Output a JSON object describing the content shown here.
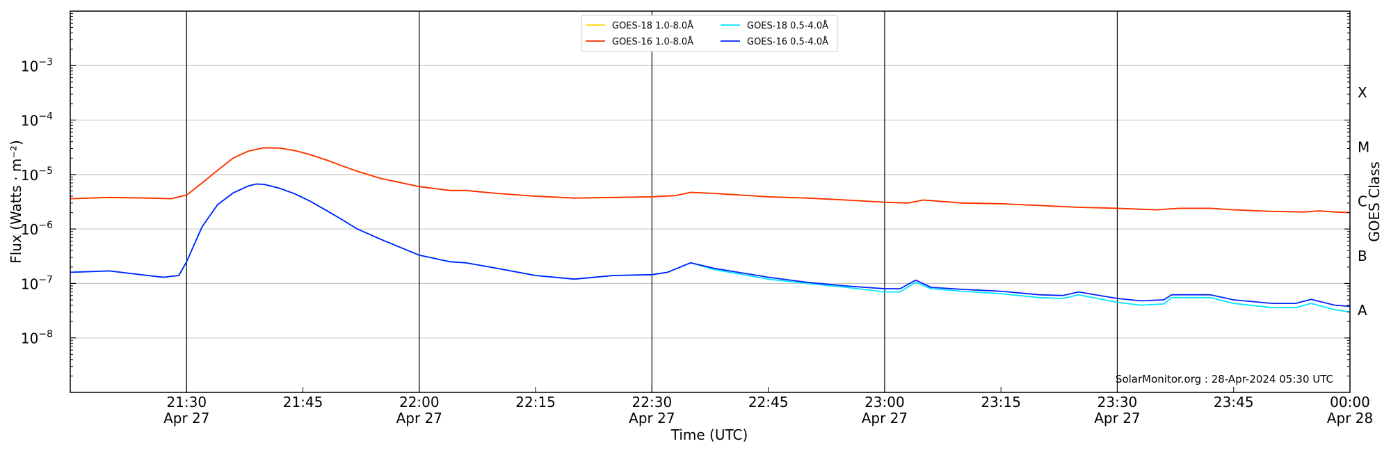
{
  "chart_data": {
    "type": "line",
    "title": "",
    "xlabel": "Time (UTC)",
    "ylabel": "Flux (Watts · m⁻²)",
    "y2label": "GOES Class",
    "y_scale": "log",
    "ylim": [
      1e-09,
      0.01
    ],
    "xlim": [
      "2024-04-27 21:15",
      "2024-04-28 00:00"
    ],
    "grid": "horizontal",
    "legend_position": "top-center",
    "watermark": "SolarMonitor.org : 28-Apr-2024 05:30 UTC",
    "y_ticks": [
      {
        "value": 1e-08,
        "base": "10",
        "exp": "−8"
      },
      {
        "value": 1e-07,
        "base": "10",
        "exp": "−7"
      },
      {
        "value": 1e-06,
        "base": "10",
        "exp": "−6"
      },
      {
        "value": 1e-05,
        "base": "10",
        "exp": "−5"
      },
      {
        "value": 0.0001,
        "base": "10",
        "exp": "−4"
      },
      {
        "value": 0.001,
        "base": "10",
        "exp": "−3"
      }
    ],
    "x_ticks": [
      {
        "time": "2024-04-27 21:30",
        "label": "21:30",
        "date": "Apr 27",
        "vline": true
      },
      {
        "time": "2024-04-27 21:45",
        "label": "21:45",
        "date": "",
        "vline": false
      },
      {
        "time": "2024-04-27 22:00",
        "label": "22:00",
        "date": "Apr 27",
        "vline": true
      },
      {
        "time": "2024-04-27 22:15",
        "label": "22:15",
        "date": "",
        "vline": false
      },
      {
        "time": "2024-04-27 22:30",
        "label": "22:30",
        "date": "Apr 27",
        "vline": true
      },
      {
        "time": "2024-04-27 22:45",
        "label": "22:45",
        "date": "",
        "vline": false
      },
      {
        "time": "2024-04-27 23:00",
        "label": "23:00",
        "date": "Apr 27",
        "vline": true
      },
      {
        "time": "2024-04-27 23:15",
        "label": "23:15",
        "date": "",
        "vline": false
      },
      {
        "time": "2024-04-27 23:30",
        "label": "23:30",
        "date": "Apr 27",
        "vline": true
      },
      {
        "time": "2024-04-27 23:45",
        "label": "23:45",
        "date": "",
        "vline": false
      },
      {
        "time": "2024-04-28 00:00",
        "label": "00:00",
        "date": "Apr 28",
        "vline": false
      }
    ],
    "class_labels": [
      {
        "label": "A",
        "value": 3.2e-08
      },
      {
        "label": "B",
        "value": 3.2e-07
      },
      {
        "label": "C",
        "value": 3.2e-06
      },
      {
        "label": "M",
        "value": 3.2e-05
      },
      {
        "label": "X",
        "value": 0.00032
      }
    ],
    "series": [
      {
        "name": "GOES-18 1.0-8.0Å",
        "color": "#ffd700",
        "points": [
          [
            "2024-04-27 21:15",
            3.6e-06
          ],
          [
            "2024-04-27 21:20",
            3.8e-06
          ],
          [
            "2024-04-27 21:25",
            3.7e-06
          ],
          [
            "2024-04-27 21:28",
            3.6e-06
          ],
          [
            "2024-04-27 21:30",
            4.2e-06
          ],
          [
            "2024-04-27 21:32",
            7e-06
          ],
          [
            "2024-04-27 21:34",
            1.2e-05
          ],
          [
            "2024-04-27 21:36",
            2e-05
          ],
          [
            "2024-04-27 21:38",
            2.7e-05
          ],
          [
            "2024-04-27 21:40",
            3.1e-05
          ],
          [
            "2024-04-27 21:42",
            3.05e-05
          ],
          [
            "2024-04-27 21:44",
            2.75e-05
          ],
          [
            "2024-04-27 21:46",
            2.3e-05
          ],
          [
            "2024-04-27 21:48",
            1.85e-05
          ],
          [
            "2024-04-27 21:50",
            1.45e-05
          ],
          [
            "2024-04-27 21:52",
            1.15e-05
          ],
          [
            "2024-04-27 21:55",
            8.5e-06
          ],
          [
            "2024-04-27 22:00",
            6e-06
          ],
          [
            "2024-04-27 22:04",
            5.1e-06
          ],
          [
            "2024-04-27 22:06",
            5.1e-06
          ],
          [
            "2024-04-27 22:10",
            4.5e-06
          ],
          [
            "2024-04-27 22:15",
            4e-06
          ],
          [
            "2024-04-27 22:20",
            3.7e-06
          ],
          [
            "2024-04-27 22:25",
            3.8e-06
          ],
          [
            "2024-04-27 22:30",
            3.9e-06
          ],
          [
            "2024-04-27 22:33",
            4.1e-06
          ],
          [
            "2024-04-27 22:35",
            4.7e-06
          ],
          [
            "2024-04-27 22:38",
            4.5e-06
          ],
          [
            "2024-04-27 22:45",
            3.9e-06
          ],
          [
            "2024-04-27 22:50",
            3.7e-06
          ],
          [
            "2024-04-27 22:55",
            3.4e-06
          ],
          [
            "2024-04-27 23:00",
            3.1e-06
          ],
          [
            "2024-04-27 23:03",
            3e-06
          ],
          [
            "2024-04-27 23:05",
            3.4e-06
          ],
          [
            "2024-04-27 23:10",
            3e-06
          ],
          [
            "2024-04-27 23:15",
            2.9e-06
          ],
          [
            "2024-04-27 23:20",
            2.7e-06
          ],
          [
            "2024-04-27 23:25",
            2.5e-06
          ],
          [
            "2024-04-27 23:30",
            2.4e-06
          ],
          [
            "2024-04-27 23:35",
            2.25e-06
          ],
          [
            "2024-04-27 23:38",
            2.4e-06
          ],
          [
            "2024-04-27 23:42",
            2.4e-06
          ],
          [
            "2024-04-27 23:45",
            2.25e-06
          ],
          [
            "2024-04-27 23:50",
            2.1e-06
          ],
          [
            "2024-04-27 23:54",
            2.05e-06
          ],
          [
            "2024-04-27 23:56",
            2.15e-06
          ],
          [
            "2024-04-27 23:58",
            2.05e-06
          ],
          [
            "2024-04-28 00:00",
            2e-06
          ]
        ]
      },
      {
        "name": "GOES-16 1.0-8.0Å",
        "color": "#ff2a00",
        "points": [
          [
            "2024-04-27 21:15",
            3.6e-06
          ],
          [
            "2024-04-27 21:20",
            3.8e-06
          ],
          [
            "2024-04-27 21:25",
            3.7e-06
          ],
          [
            "2024-04-27 21:28",
            3.6e-06
          ],
          [
            "2024-04-27 21:30",
            4.2e-06
          ],
          [
            "2024-04-27 21:32",
            7e-06
          ],
          [
            "2024-04-27 21:34",
            1.2e-05
          ],
          [
            "2024-04-27 21:36",
            2e-05
          ],
          [
            "2024-04-27 21:38",
            2.7e-05
          ],
          [
            "2024-04-27 21:40",
            3.1e-05
          ],
          [
            "2024-04-27 21:42",
            3.05e-05
          ],
          [
            "2024-04-27 21:44",
            2.75e-05
          ],
          [
            "2024-04-27 21:46",
            2.3e-05
          ],
          [
            "2024-04-27 21:48",
            1.85e-05
          ],
          [
            "2024-04-27 21:50",
            1.45e-05
          ],
          [
            "2024-04-27 21:52",
            1.15e-05
          ],
          [
            "2024-04-27 21:55",
            8.5e-06
          ],
          [
            "2024-04-27 22:00",
            6e-06
          ],
          [
            "2024-04-27 22:04",
            5.1e-06
          ],
          [
            "2024-04-27 22:06",
            5.1e-06
          ],
          [
            "2024-04-27 22:10",
            4.5e-06
          ],
          [
            "2024-04-27 22:15",
            4e-06
          ],
          [
            "2024-04-27 22:20",
            3.7e-06
          ],
          [
            "2024-04-27 22:25",
            3.8e-06
          ],
          [
            "2024-04-27 22:30",
            3.9e-06
          ],
          [
            "2024-04-27 22:33",
            4.1e-06
          ],
          [
            "2024-04-27 22:35",
            4.7e-06
          ],
          [
            "2024-04-27 22:38",
            4.5e-06
          ],
          [
            "2024-04-27 22:45",
            3.9e-06
          ],
          [
            "2024-04-27 22:50",
            3.7e-06
          ],
          [
            "2024-04-27 22:55",
            3.4e-06
          ],
          [
            "2024-04-27 23:00",
            3.1e-06
          ],
          [
            "2024-04-27 23:03",
            3e-06
          ],
          [
            "2024-04-27 23:05",
            3.4e-06
          ],
          [
            "2024-04-27 23:10",
            3e-06
          ],
          [
            "2024-04-27 23:15",
            2.9e-06
          ],
          [
            "2024-04-27 23:20",
            2.7e-06
          ],
          [
            "2024-04-27 23:25",
            2.5e-06
          ],
          [
            "2024-04-27 23:30",
            2.4e-06
          ],
          [
            "2024-04-27 23:35",
            2.25e-06
          ],
          [
            "2024-04-27 23:38",
            2.4e-06
          ],
          [
            "2024-04-27 23:42",
            2.4e-06
          ],
          [
            "2024-04-27 23:45",
            2.25e-06
          ],
          [
            "2024-04-27 23:50",
            2.1e-06
          ],
          [
            "2024-04-27 23:54",
            2.05e-06
          ],
          [
            "2024-04-27 23:56",
            2.15e-06
          ],
          [
            "2024-04-27 23:58",
            2.05e-06
          ],
          [
            "2024-04-28 00:00",
            2e-06
          ]
        ]
      },
      {
        "name": "GOES-18 0.5-4.0Å",
        "color": "#00e5ff",
        "points": [
          [
            "2024-04-27 21:15",
            1.6e-07
          ],
          [
            "2024-04-27 21:20",
            1.7e-07
          ],
          [
            "2024-04-27 21:25",
            1.4e-07
          ],
          [
            "2024-04-27 21:27",
            1.3e-07
          ],
          [
            "2024-04-27 21:29",
            1.4e-07
          ],
          [
            "2024-04-27 21:30",
            2.5e-07
          ],
          [
            "2024-04-27 21:32",
            1.1e-06
          ],
          [
            "2024-04-27 21:34",
            2.8e-06
          ],
          [
            "2024-04-27 21:36",
            4.6e-06
          ],
          [
            "2024-04-27 21:38",
            6.2e-06
          ],
          [
            "2024-04-27 21:39",
            6.7e-06
          ],
          [
            "2024-04-27 21:40",
            6.6e-06
          ],
          [
            "2024-04-27 21:42",
            5.6e-06
          ],
          [
            "2024-04-27 21:44",
            4.4e-06
          ],
          [
            "2024-04-27 21:46",
            3.2e-06
          ],
          [
            "2024-04-27 21:48",
            2.2e-06
          ],
          [
            "2024-04-27 21:50",
            1.5e-06
          ],
          [
            "2024-04-27 21:52",
            1e-06
          ],
          [
            "2024-04-27 21:55",
            6.5e-07
          ],
          [
            "2024-04-27 22:00",
            3.3e-07
          ],
          [
            "2024-04-27 22:04",
            2.5e-07
          ],
          [
            "2024-04-27 22:06",
            2.4e-07
          ],
          [
            "2024-04-27 22:10",
            1.9e-07
          ],
          [
            "2024-04-27 22:15",
            1.4e-07
          ],
          [
            "2024-04-27 22:20",
            1.2e-07
          ],
          [
            "2024-04-27 22:25",
            1.4e-07
          ],
          [
            "2024-04-27 22:30",
            1.45e-07
          ],
          [
            "2024-04-27 22:32",
            1.6e-07
          ],
          [
            "2024-04-27 22:35",
            2.4e-07
          ],
          [
            "2024-04-27 22:38",
            1.8e-07
          ],
          [
            "2024-04-27 22:45",
            1.2e-07
          ],
          [
            "2024-04-27 22:50",
            1e-07
          ],
          [
            "2024-04-27 22:55",
            8.5e-08
          ],
          [
            "2024-04-27 23:00",
            7e-08
          ],
          [
            "2024-04-27 23:02",
            7e-08
          ],
          [
            "2024-04-27 23:04",
            1.05e-07
          ],
          [
            "2024-04-27 23:06",
            8e-08
          ],
          [
            "2024-04-27 23:10",
            7.2e-08
          ],
          [
            "2024-04-27 23:15",
            6.5e-08
          ],
          [
            "2024-04-27 23:20",
            5.5e-08
          ],
          [
            "2024-04-27 23:23",
            5.3e-08
          ],
          [
            "2024-04-27 23:25",
            6.2e-08
          ],
          [
            "2024-04-27 23:30",
            4.5e-08
          ],
          [
            "2024-04-27 23:33",
            4e-08
          ],
          [
            "2024-04-27 23:36",
            4.2e-08
          ],
          [
            "2024-04-27 23:37",
            5.5e-08
          ],
          [
            "2024-04-27 23:42",
            5.5e-08
          ],
          [
            "2024-04-27 23:45",
            4.3e-08
          ],
          [
            "2024-04-27 23:50",
            3.6e-08
          ],
          [
            "2024-04-27 23:53",
            3.6e-08
          ],
          [
            "2024-04-27 23:55",
            4.3e-08
          ],
          [
            "2024-04-27 23:58",
            3.3e-08
          ],
          [
            "2024-04-28 00:00",
            3e-08
          ]
        ]
      },
      {
        "name": "GOES-16 0.5-4.0Å",
        "color": "#0020ff",
        "points": [
          [
            "2024-04-27 21:15",
            1.6e-07
          ],
          [
            "2024-04-27 21:20",
            1.7e-07
          ],
          [
            "2024-04-27 21:25",
            1.4e-07
          ],
          [
            "2024-04-27 21:27",
            1.3e-07
          ],
          [
            "2024-04-27 21:29",
            1.4e-07
          ],
          [
            "2024-04-27 21:30",
            2.5e-07
          ],
          [
            "2024-04-27 21:32",
            1.1e-06
          ],
          [
            "2024-04-27 21:34",
            2.8e-06
          ],
          [
            "2024-04-27 21:36",
            4.6e-06
          ],
          [
            "2024-04-27 21:38",
            6.2e-06
          ],
          [
            "2024-04-27 21:39",
            6.7e-06
          ],
          [
            "2024-04-27 21:40",
            6.6e-06
          ],
          [
            "2024-04-27 21:42",
            5.6e-06
          ],
          [
            "2024-04-27 21:44",
            4.4e-06
          ],
          [
            "2024-04-27 21:46",
            3.2e-06
          ],
          [
            "2024-04-27 21:48",
            2.2e-06
          ],
          [
            "2024-04-27 21:50",
            1.5e-06
          ],
          [
            "2024-04-27 21:52",
            1e-06
          ],
          [
            "2024-04-27 21:55",
            6.5e-07
          ],
          [
            "2024-04-27 22:00",
            3.3e-07
          ],
          [
            "2024-04-27 22:04",
            2.5e-07
          ],
          [
            "2024-04-27 22:06",
            2.4e-07
          ],
          [
            "2024-04-27 22:10",
            1.9e-07
          ],
          [
            "2024-04-27 22:15",
            1.4e-07
          ],
          [
            "2024-04-27 22:20",
            1.2e-07
          ],
          [
            "2024-04-27 22:25",
            1.4e-07
          ],
          [
            "2024-04-27 22:30",
            1.45e-07
          ],
          [
            "2024-04-27 22:32",
            1.6e-07
          ],
          [
            "2024-04-27 22:35",
            2.4e-07
          ],
          [
            "2024-04-27 22:38",
            1.9e-07
          ],
          [
            "2024-04-27 22:45",
            1.3e-07
          ],
          [
            "2024-04-27 22:50",
            1.05e-07
          ],
          [
            "2024-04-27 22:55",
            9e-08
          ],
          [
            "2024-04-27 23:00",
            8e-08
          ],
          [
            "2024-04-27 23:02",
            8e-08
          ],
          [
            "2024-04-27 23:04",
            1.15e-07
          ],
          [
            "2024-04-27 23:06",
            8.5e-08
          ],
          [
            "2024-04-27 23:10",
            7.8e-08
          ],
          [
            "2024-04-27 23:15",
            7.2e-08
          ],
          [
            "2024-04-27 23:20",
            6.2e-08
          ],
          [
            "2024-04-27 23:23",
            6e-08
          ],
          [
            "2024-04-27 23:25",
            7e-08
          ],
          [
            "2024-04-27 23:30",
            5.3e-08
          ],
          [
            "2024-04-27 23:33",
            4.8e-08
          ],
          [
            "2024-04-27 23:36",
            5e-08
          ],
          [
            "2024-04-27 23:37",
            6.2e-08
          ],
          [
            "2024-04-27 23:42",
            6.2e-08
          ],
          [
            "2024-04-27 23:45",
            5e-08
          ],
          [
            "2024-04-27 23:50",
            4.3e-08
          ],
          [
            "2024-04-27 23:53",
            4.3e-08
          ],
          [
            "2024-04-27 23:55",
            5.1e-08
          ],
          [
            "2024-04-27 23:58",
            4e-08
          ],
          [
            "2024-04-28 00:00",
            3.8e-08
          ]
        ]
      }
    ]
  }
}
